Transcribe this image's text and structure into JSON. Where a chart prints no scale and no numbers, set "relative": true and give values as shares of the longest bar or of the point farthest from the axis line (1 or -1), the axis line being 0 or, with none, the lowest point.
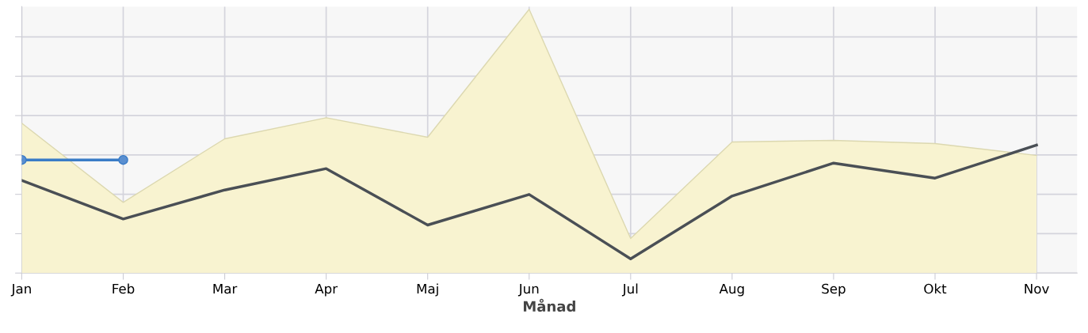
{
  "chart_data": {
    "type": "line",
    "xlabel": "Månad",
    "relative": true,
    "grid": true,
    "categories": [
      "Jan",
      "Feb",
      "Mar",
      "Apr",
      "Maj",
      "Jun",
      "Jul",
      "Aug",
      "Sep",
      "Okt",
      "Nov"
    ],
    "series": [
      {
        "type": "area",
        "color": "#f8f3d0",
        "values": [
          0.568,
          0.268,
          0.509,
          0.589,
          0.515,
          1.0,
          0.131,
          0.497,
          0.503,
          0.491,
          0.446
        ]
      },
      {
        "color": "#4a4f55",
        "values": [
          0.351,
          0.205,
          0.315,
          0.396,
          0.182,
          0.298,
          0.054,
          0.292,
          0.417,
          0.36,
          0.485
        ]
      },
      {
        "color": "#3a7cc7",
        "marker": "circle",
        "values": [
          0.429,
          0.429,
          null,
          null,
          null,
          null,
          null,
          null,
          null,
          null,
          null
        ]
      }
    ]
  }
}
